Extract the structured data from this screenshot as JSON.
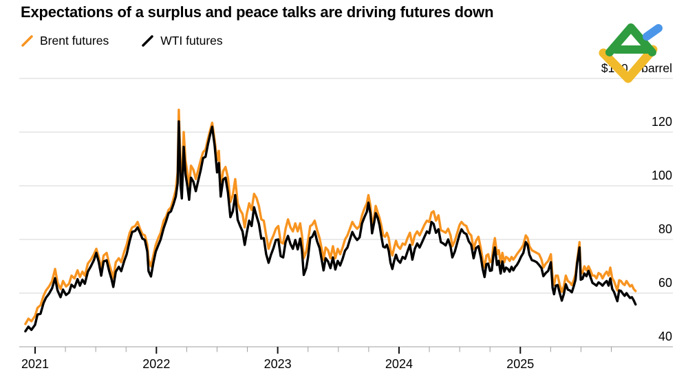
{
  "header": {
    "title": "Expectations of a surplus and peace talks are driving futures down"
  },
  "legend": {
    "items": [
      {
        "label": "Brent futures",
        "color": "#F79420"
      },
      {
        "label": "WTI futures",
        "color": "#000000"
      }
    ]
  },
  "brand": {
    "name": "LiteFinance chart logo",
    "colors": {
      "green": "#2E9C3F",
      "yellow": "#F1BA2A",
      "blue": "#4B96E9"
    }
  },
  "chart_data": {
    "type": "line",
    "title": "Expectations of a surplus and peace talks are driving futures down",
    "unit": "$ a barrel",
    "grid": "horizontal",
    "legend_position": "top-left",
    "x_axis": {
      "ticks": [
        {
          "value": 2021,
          "label": "2021"
        },
        {
          "value": 2022,
          "label": "2022"
        },
        {
          "value": 2023,
          "label": "2023"
        },
        {
          "value": 2024,
          "label": "2024"
        },
        {
          "value": 2025,
          "label": "2025"
        }
      ],
      "minor_tick_interval_years": 0.25,
      "minor_tick_start": 2021.25,
      "minor_tick_end": 2025.75,
      "range": [
        2020.87,
        2026.26
      ]
    },
    "y_axis": {
      "ticks": [
        {
          "value": 140,
          "label": "$140 a barrel",
          "is_unit_label": true
        },
        {
          "value": 120,
          "label": "120"
        },
        {
          "value": 100,
          "label": "100"
        },
        {
          "value": 80,
          "label": "80"
        },
        {
          "value": 60,
          "label": "60"
        },
        {
          "value": 40,
          "label": "40"
        }
      ],
      "range": [
        40,
        145
      ],
      "side": "right"
    },
    "series": [
      {
        "name": "Brent futures",
        "color": "#F79420",
        "points_index": 1
      },
      {
        "name": "WTI futures",
        "color": "#000000",
        "points_index": 2
      }
    ],
    "points_format": [
      "year_decimal",
      "brent_usd_per_barrel",
      "wti_usd_per_barrel"
    ],
    "points": [
      [
        2020.92,
        48.5,
        45.8
      ],
      [
        2020.945,
        50.5,
        47.5
      ],
      [
        2020.97,
        49.5,
        46.3
      ],
      [
        2021.0,
        51.5,
        48.2
      ],
      [
        2021.02,
        54.5,
        52.0
      ],
      [
        2021.045,
        55.5,
        52.3
      ],
      [
        2021.07,
        59.0,
        56.3
      ],
      [
        2021.09,
        61.0,
        58.3
      ],
      [
        2021.115,
        62.5,
        59.8
      ],
      [
        2021.14,
        64.5,
        61.8
      ],
      [
        2021.165,
        69.0,
        65.6
      ],
      [
        2021.185,
        64.0,
        61.0
      ],
      [
        2021.21,
        61.5,
        58.5
      ],
      [
        2021.23,
        64.5,
        61.3
      ],
      [
        2021.255,
        62.5,
        59.3
      ],
      [
        2021.28,
        63.5,
        60.2
      ],
      [
        2021.3,
        66.5,
        63.1
      ],
      [
        2021.325,
        65.5,
        62.1
      ],
      [
        2021.35,
        68.5,
        65.2
      ],
      [
        2021.37,
        66.0,
        62.8
      ],
      [
        2021.39,
        68.0,
        65.0
      ],
      [
        2021.41,
        66.5,
        63.5
      ],
      [
        2021.435,
        71.0,
        68.0
      ],
      [
        2021.46,
        72.5,
        70.0
      ],
      [
        2021.485,
        74.5,
        72.3
      ],
      [
        2021.505,
        76.5,
        75.0
      ],
      [
        2021.525,
        73.5,
        71.5
      ],
      [
        2021.545,
        69.0,
        66.5
      ],
      [
        2021.565,
        74.0,
        71.8
      ],
      [
        2021.59,
        75.0,
        72.2
      ],
      [
        2021.61,
        71.0,
        68.3
      ],
      [
        2021.63,
        68.0,
        65.2
      ],
      [
        2021.645,
        65.5,
        62.3
      ],
      [
        2021.665,
        71.5,
        68.0
      ],
      [
        2021.69,
        73.0,
        69.8
      ],
      [
        2021.71,
        71.5,
        68.2
      ],
      [
        2021.735,
        75.5,
        72.0
      ],
      [
        2021.755,
        78.0,
        74.5
      ],
      [
        2021.78,
        82.5,
        79.5
      ],
      [
        2021.8,
        84.5,
        82.8
      ],
      [
        2021.825,
        85.0,
        83.2
      ],
      [
        2021.845,
        86.5,
        84.5
      ],
      [
        2021.865,
        84.0,
        82.5
      ],
      [
        2021.885,
        82.0,
        80.3
      ],
      [
        2021.905,
        81.5,
        79.8
      ],
      [
        2021.925,
        78.0,
        75.5
      ],
      [
        2021.935,
        72.5,
        68.2
      ],
      [
        2021.955,
        70.0,
        66.2
      ],
      [
        2021.975,
        74.0,
        71.3
      ],
      [
        2021.995,
        78.0,
        75.5
      ],
      [
        2022.015,
        80.5,
        77.8
      ],
      [
        2022.035,
        82.5,
        80.0
      ],
      [
        2022.06,
        87.0,
        84.2
      ],
      [
        2022.08,
        88.5,
        86.8
      ],
      [
        2022.1,
        91.0,
        89.8
      ],
      [
        2022.12,
        92.0,
        90.5
      ],
      [
        2022.14,
        95.0,
        93.0
      ],
      [
        2022.16,
        98.5,
        96.0
      ],
      [
        2022.175,
        105.0,
        101.0
      ],
      [
        2022.185,
        128.3,
        124.0
      ],
      [
        2022.2,
        106.0,
        100.0
      ],
      [
        2022.21,
        98.5,
        95.3
      ],
      [
        2022.225,
        120.0,
        114.5
      ],
      [
        2022.24,
        109.5,
        104.3
      ],
      [
        2022.255,
        105.0,
        100.0
      ],
      [
        2022.27,
        99.5,
        94.8
      ],
      [
        2022.285,
        107.5,
        103.0
      ],
      [
        2022.305,
        106.0,
        101.5
      ],
      [
        2022.325,
        102.5,
        98.0
      ],
      [
        2022.345,
        106.0,
        102.0
      ],
      [
        2022.365,
        109.5,
        105.8
      ],
      [
        2022.385,
        112.5,
        110.3
      ],
      [
        2022.405,
        113.5,
        110.8
      ],
      [
        2022.425,
        117.5,
        115.6
      ],
      [
        2022.445,
        121.0,
        119.5
      ],
      [
        2022.46,
        123.5,
        122.0
      ],
      [
        2022.48,
        117.0,
        115.0
      ],
      [
        2022.5,
        109.5,
        105.0
      ],
      [
        2022.515,
        113.0,
        108.5
      ],
      [
        2022.53,
        99.5,
        96.0
      ],
      [
        2022.55,
        105.5,
        102.3
      ],
      [
        2022.57,
        107.0,
        103.0
      ],
      [
        2022.59,
        103.0,
        97.5
      ],
      [
        2022.61,
        94.0,
        88.3
      ],
      [
        2022.63,
        96.5,
        90.5
      ],
      [
        2022.65,
        102.5,
        96.5
      ],
      [
        2022.67,
        93.5,
        87.3
      ],
      [
        2022.69,
        91.0,
        85.0
      ],
      [
        2022.71,
        89.5,
        83.0
      ],
      [
        2022.728,
        84.5,
        78.0
      ],
      [
        2022.745,
        89.5,
        82.5
      ],
      [
        2022.765,
        93.5,
        87.0
      ],
      [
        2022.785,
        91.0,
        85.0
      ],
      [
        2022.805,
        97.0,
        92.0
      ],
      [
        2022.825,
        95.5,
        88.8
      ],
      [
        2022.845,
        92.5,
        85.8
      ],
      [
        2022.865,
        87.5,
        80.3
      ],
      [
        2022.885,
        87.0,
        80.5
      ],
      [
        2022.905,
        81.5,
        74.5
      ],
      [
        2022.925,
        76.5,
        71.3
      ],
      [
        2022.945,
        79.5,
        74.3
      ],
      [
        2022.965,
        81.5,
        76.8
      ],
      [
        2022.985,
        84.0,
        79.8
      ],
      [
        2023.005,
        85.0,
        80.0
      ],
      [
        2023.025,
        79.0,
        73.8
      ],
      [
        2023.045,
        78.5,
        73.3
      ],
      [
        2023.065,
        84.0,
        79.0
      ],
      [
        2023.085,
        87.5,
        81.3
      ],
      [
        2023.105,
        84.5,
        78.3
      ],
      [
        2023.125,
        83.0,
        76.5
      ],
      [
        2023.145,
        86.0,
        79.8
      ],
      [
        2023.165,
        83.0,
        76.3
      ],
      [
        2023.185,
        86.0,
        80.3
      ],
      [
        2023.2,
        81.5,
        75.8
      ],
      [
        2023.215,
        73.0,
        66.8
      ],
      [
        2023.235,
        75.5,
        69.3
      ],
      [
        2023.25,
        79.5,
        73.3
      ],
      [
        2023.268,
        85.0,
        80.5
      ],
      [
        2023.285,
        85.5,
        81.0
      ],
      [
        2023.305,
        87.0,
        83.0
      ],
      [
        2023.325,
        83.5,
        79.3
      ],
      [
        2023.345,
        80.5,
        76.8
      ],
      [
        2023.365,
        76.0,
        71.8
      ],
      [
        2023.378,
        72.5,
        68.5
      ],
      [
        2023.395,
        77.0,
        73.0
      ],
      [
        2023.415,
        76.0,
        71.8
      ],
      [
        2023.435,
        73.0,
        69.3
      ],
      [
        2023.455,
        77.5,
        73.3
      ],
      [
        2023.475,
        73.0,
        68.8
      ],
      [
        2023.495,
        76.5,
        72.0
      ],
      [
        2023.515,
        74.5,
        70.3
      ],
      [
        2023.535,
        77.0,
        72.8
      ],
      [
        2023.555,
        80.0,
        75.8
      ],
      [
        2023.575,
        81.5,
        77.0
      ],
      [
        2023.595,
        84.0,
        80.0
      ],
      [
        2023.615,
        86.5,
        82.8
      ],
      [
        2023.635,
        85.0,
        81.0
      ],
      [
        2023.655,
        84.0,
        79.8
      ],
      [
        2023.675,
        85.0,
        80.8
      ],
      [
        2023.695,
        89.0,
        86.0
      ],
      [
        2023.715,
        91.5,
        88.3
      ],
      [
        2023.735,
        93.5,
        90.3
      ],
      [
        2023.748,
        96.5,
        93.7
      ],
      [
        2023.765,
        92.5,
        89.5
      ],
      [
        2023.778,
        84.5,
        82.3
      ],
      [
        2023.795,
        88.5,
        86.3
      ],
      [
        2023.808,
        92.5,
        89.8
      ],
      [
        2023.825,
        90.0,
        88.0
      ],
      [
        2023.84,
        88.0,
        85.3
      ],
      [
        2023.855,
        85.0,
        81.0
      ],
      [
        2023.87,
        81.5,
        77.3
      ],
      [
        2023.885,
        81.0,
        77.0
      ],
      [
        2023.9,
        82.5,
        78.0
      ],
      [
        2023.915,
        80.5,
        75.8
      ],
      [
        2023.93,
        76.0,
        71.3
      ],
      [
        2023.945,
        74.0,
        69.0
      ],
      [
        2023.96,
        77.0,
        72.0
      ],
      [
        2023.975,
        79.5,
        74.3
      ],
      [
        2023.99,
        77.5,
        72.3
      ],
      [
        2024.01,
        76.5,
        71.3
      ],
      [
        2024.03,
        78.5,
        73.5
      ],
      [
        2024.05,
        78.0,
        72.8
      ],
      [
        2024.07,
        80.5,
        75.5
      ],
      [
        2024.09,
        82.5,
        78.0
      ],
      [
        2024.11,
        78.0,
        72.5
      ],
      [
        2024.13,
        81.5,
        76.5
      ],
      [
        2024.15,
        83.0,
        78.5
      ],
      [
        2024.17,
        81.5,
        77.0
      ],
      [
        2024.19,
        83.5,
        79.0
      ],
      [
        2024.21,
        85.5,
        81.0
      ],
      [
        2024.23,
        87.0,
        83.0
      ],
      [
        2024.25,
        86.5,
        82.3
      ],
      [
        2024.268,
        90.0,
        86.5
      ],
      [
        2024.285,
        90.5,
        85.8
      ],
      [
        2024.305,
        87.0,
        82.5
      ],
      [
        2024.325,
        89.0,
        83.8
      ],
      [
        2024.345,
        83.5,
        79.0
      ],
      [
        2024.365,
        83.0,
        78.5
      ],
      [
        2024.385,
        82.5,
        77.8
      ],
      [
        2024.405,
        84.0,
        80.0
      ],
      [
        2024.425,
        81.5,
        77.3
      ],
      [
        2024.44,
        77.5,
        73.3
      ],
      [
        2024.46,
        79.5,
        75.5
      ],
      [
        2024.48,
        82.5,
        78.8
      ],
      [
        2024.5,
        85.5,
        82.0
      ],
      [
        2024.515,
        86.5,
        83.8
      ],
      [
        2024.535,
        85.5,
        82.5
      ],
      [
        2024.555,
        85.0,
        82.0
      ],
      [
        2024.575,
        82.5,
        79.3
      ],
      [
        2024.595,
        81.5,
        78.0
      ],
      [
        2024.615,
        76.5,
        73.0
      ],
      [
        2024.635,
        79.5,
        76.8
      ],
      [
        2024.655,
        81.0,
        77.5
      ],
      [
        2024.675,
        76.5,
        73.3
      ],
      [
        2024.69,
        72.5,
        69.0
      ],
      [
        2024.705,
        69.5,
        66.0
      ],
      [
        2024.72,
        74.0,
        70.8
      ],
      [
        2024.735,
        74.5,
        71.0
      ],
      [
        2024.75,
        71.5,
        68.3
      ],
      [
        2024.765,
        72.0,
        68.5
      ],
      [
        2024.778,
        77.5,
        74.0
      ],
      [
        2024.79,
        80.5,
        77.0
      ],
      [
        2024.808,
        74.5,
        70.5
      ],
      [
        2024.822,
        76.0,
        72.0
      ],
      [
        2024.838,
        71.5,
        67.3
      ],
      [
        2024.852,
        75.0,
        71.8
      ],
      [
        2024.868,
        71.5,
        68.0
      ],
      [
        2024.882,
        73.5,
        69.5
      ],
      [
        2024.898,
        73.0,
        69.0
      ],
      [
        2024.912,
        72.0,
        68.0
      ],
      [
        2024.928,
        73.5,
        69.8
      ],
      [
        2024.942,
        72.5,
        68.5
      ],
      [
        2024.958,
        73.5,
        69.8
      ],
      [
        2024.972,
        74.5,
        70.5
      ],
      [
        2024.988,
        75.5,
        71.8
      ],
      [
        2025.005,
        76.5,
        73.5
      ],
      [
        2025.025,
        78.0,
        75.0
      ],
      [
        2025.045,
        81.5,
        79.0
      ],
      [
        2025.06,
        80.5,
        78.0
      ],
      [
        2025.075,
        77.5,
        74.3
      ],
      [
        2025.095,
        76.0,
        72.3
      ],
      [
        2025.115,
        75.5,
        72.0
      ],
      [
        2025.135,
        75.0,
        71.5
      ],
      [
        2025.155,
        74.5,
        70.5
      ],
      [
        2025.175,
        72.5,
        69.3
      ],
      [
        2025.19,
        69.5,
        66.3
      ],
      [
        2025.21,
        71.0,
        67.5
      ],
      [
        2025.23,
        72.0,
        68.3
      ],
      [
        2025.252,
        74.5,
        71.5
      ],
      [
        2025.266,
        65.5,
        62.0
      ],
      [
        2025.278,
        63.0,
        59.6
      ],
      [
        2025.292,
        66.5,
        62.8
      ],
      [
        2025.308,
        66.5,
        63.0
      ],
      [
        2025.325,
        63.0,
        60.0
      ],
      [
        2025.342,
        60.5,
        57.2
      ],
      [
        2025.358,
        62.5,
        59.5
      ],
      [
        2025.375,
        66.5,
        63.3
      ],
      [
        2025.392,
        64.5,
        61.3
      ],
      [
        2025.408,
        64.0,
        61.0
      ],
      [
        2025.425,
        63.0,
        60.3
      ],
      [
        2025.442,
        65.0,
        62.8
      ],
      [
        2025.455,
        67.0,
        65.0
      ],
      [
        2025.468,
        72.0,
        71.0
      ],
      [
        2025.478,
        75.5,
        74.0
      ],
      [
        2025.488,
        79.0,
        77.0
      ],
      [
        2025.498,
        68.0,
        65.0
      ],
      [
        2025.512,
        67.5,
        65.3
      ],
      [
        2025.528,
        70.0,
        67.3
      ],
      [
        2025.545,
        68.5,
        66.3
      ],
      [
        2025.562,
        70.0,
        68.3
      ],
      [
        2025.578,
        68.5,
        66.0
      ],
      [
        2025.595,
        66.5,
        63.8
      ],
      [
        2025.612,
        66.5,
        63.3
      ],
      [
        2025.628,
        65.5,
        62.8
      ],
      [
        2025.645,
        67.5,
        64.0
      ],
      [
        2025.662,
        67.0,
        63.5
      ],
      [
        2025.678,
        65.5,
        62.8
      ],
      [
        2025.695,
        67.0,
        63.8
      ],
      [
        2025.712,
        68.0,
        64.5
      ],
      [
        2025.728,
        66.5,
        62.8
      ],
      [
        2025.742,
        69.5,
        65.5
      ],
      [
        2025.758,
        65.5,
        61.5
      ],
      [
        2025.772,
        64.5,
        60.5
      ],
      [
        2025.788,
        62.5,
        58.5
      ],
      [
        2025.8,
        61.0,
        57.0
      ],
      [
        2025.815,
        64.8,
        61.0
      ],
      [
        2025.83,
        64.5,
        60.8
      ],
      [
        2025.845,
        63.5,
        59.8
      ],
      [
        2025.86,
        63.0,
        59.0
      ],
      [
        2025.875,
        64.5,
        60.0
      ],
      [
        2025.89,
        63.5,
        59.0
      ],
      [
        2025.905,
        62.5,
        58.2
      ],
      [
        2025.92,
        63.0,
        58.5
      ],
      [
        2025.935,
        61.5,
        57.3
      ],
      [
        2025.95,
        60.8,
        55.8
      ]
    ]
  }
}
